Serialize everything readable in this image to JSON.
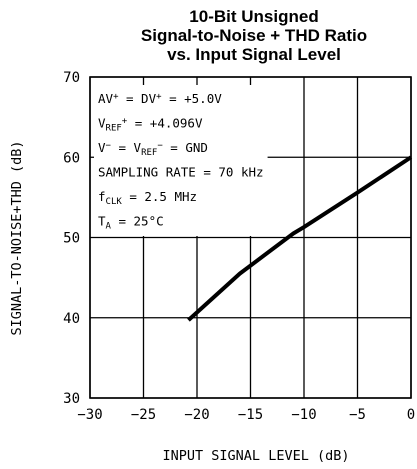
{
  "chart_data": {
    "type": "line",
    "title_lines": [
      "10-Bit Unsigned",
      "Signal-to-Noise + THD Ratio",
      "vs. Input Signal Level"
    ],
    "xlabel": "INPUT SIGNAL LEVEL (dB)",
    "ylabel": "SIGNAL-TO-NOISE+THD (dB)",
    "xlim": [
      -30,
      0
    ],
    "ylim": [
      30,
      70
    ],
    "xticks": [
      -30,
      -25,
      -20,
      -15,
      -10,
      -5,
      0
    ],
    "xtick_labels": [
      "−30",
      "−25",
      "−20",
      "−15",
      "−10",
      "−5",
      "0"
    ],
    "yticks": [
      30,
      40,
      50,
      60,
      70
    ],
    "ytick_labels": [
      "30",
      "40",
      "50",
      "60",
      "70"
    ],
    "grid": true,
    "series": [
      {
        "x": [
          -20.8,
          -16,
          -11,
          -10,
          -5,
          0
        ],
        "y": [
          39.7,
          45.5,
          50.5,
          51.3,
          55.6,
          60.0
        ]
      }
    ],
    "annotations": [
      [
        {
          "t": "AV"
        },
        {
          "t": "+",
          "s": "sup"
        },
        {
          "t": " = DV"
        },
        {
          "t": "+",
          "s": "sup"
        },
        {
          "t": " = +5.0V"
        }
      ],
      [
        {
          "t": "V"
        },
        {
          "t": "REF",
          "s": "sub"
        },
        {
          "t": "+",
          "s": "sup"
        },
        {
          "t": " = +4.096V"
        }
      ],
      [
        {
          "t": "V"
        },
        {
          "t": "−",
          "s": "sup"
        },
        {
          "t": " = V"
        },
        {
          "t": "REF",
          "s": "sub"
        },
        {
          "t": "−",
          "s": "sup"
        },
        {
          "t": " = GND"
        }
      ],
      [
        {
          "t": "SAMPLING RATE = 70 kHz"
        }
      ],
      [
        {
          "t": "f"
        },
        {
          "t": "CLK",
          "s": "sub"
        },
        {
          "t": " = 2.5 MHz"
        }
      ],
      [
        {
          "t": "T"
        },
        {
          "t": "A",
          "s": "sub"
        },
        {
          "t": " = 25°C"
        }
      ]
    ],
    "colors": {
      "line": "#000000",
      "grid": "#000000",
      "background": "#ffffff"
    }
  }
}
